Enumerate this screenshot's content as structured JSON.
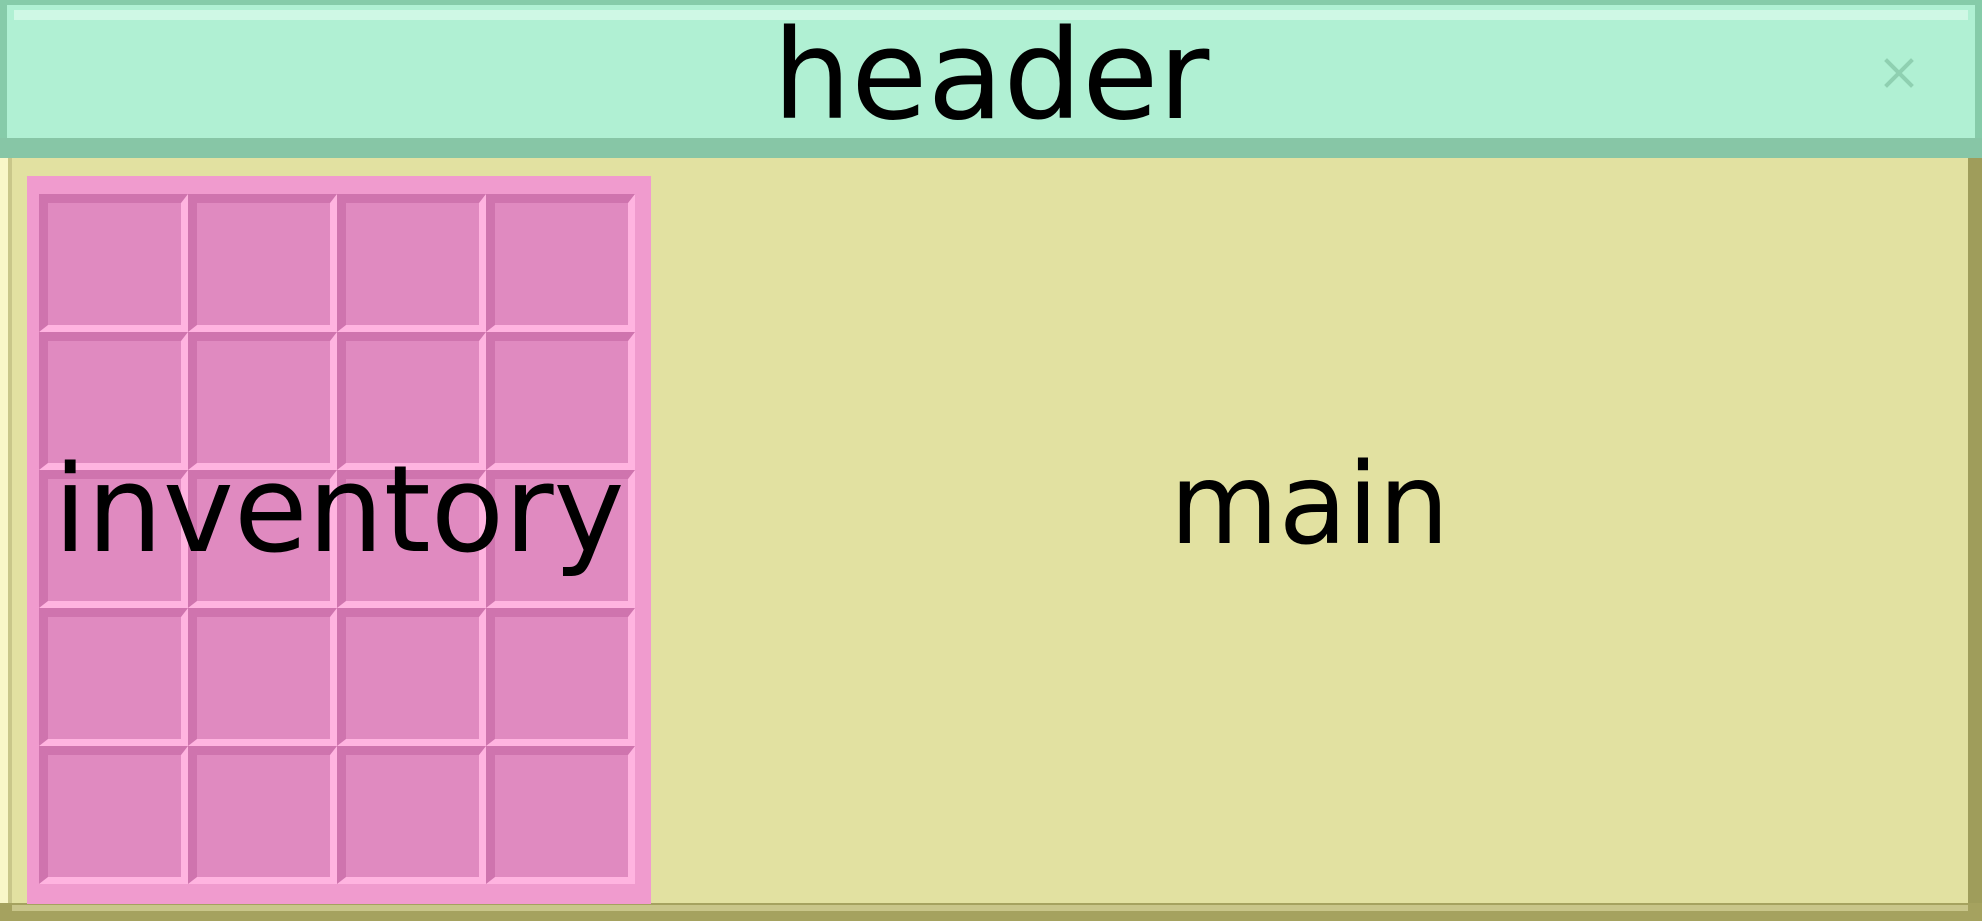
{
  "header": {
    "title": "header"
  },
  "inventory": {
    "label": "inventory",
    "rows": 5,
    "columns": 4
  },
  "main": {
    "label": "main"
  },
  "icons": {
    "close": "close-icon"
  },
  "colors": {
    "header_bg": "#b0f0d3",
    "main_bg": "#e2e1a1",
    "inventory_bg": "#f09bce",
    "slot_bg": "#e08ac0"
  }
}
